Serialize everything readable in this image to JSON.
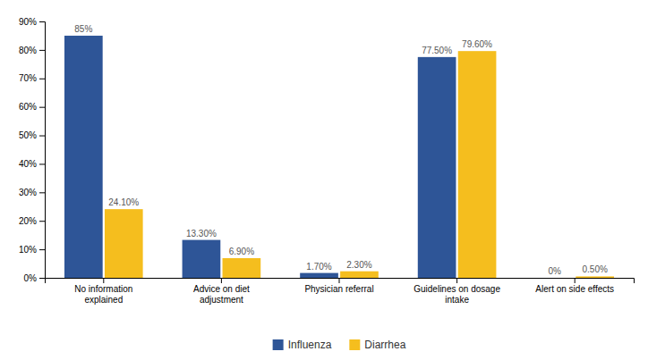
{
  "chart_data": {
    "type": "bar",
    "categories": [
      "No information\nexplained",
      "Advice on diet\nadjustment",
      "Physician referral",
      "Guidelines on dosage\nintake",
      "Alert on side effects"
    ],
    "series": [
      {
        "name": "Influenza",
        "color": "#2E5597",
        "values": [
          85.0,
          13.3,
          1.7,
          77.5,
          0.0
        ],
        "value_labels": [
          "85%",
          "13.30%",
          "1.70%",
          "77.50%",
          "0%"
        ]
      },
      {
        "name": "Diarrhea",
        "color": "#F5BE1E",
        "values": [
          24.1,
          6.9,
          2.3,
          79.6,
          0.5
        ],
        "value_labels": [
          "24.10%",
          "6.90%",
          "2.30%",
          "79.60%",
          "0.50%"
        ]
      }
    ],
    "ylim": [
      0,
      90
    ],
    "yticks": [
      {
        "value": 0,
        "label": "0%"
      },
      {
        "value": 10,
        "label": "10%"
      },
      {
        "value": 20,
        "label": "20%"
      },
      {
        "value": 30,
        "label": "30%"
      },
      {
        "value": 40,
        "label": "40%"
      },
      {
        "value": 50,
        "label": "50%"
      },
      {
        "value": 60,
        "label": "60%"
      },
      {
        "value": 70,
        "label": "70%"
      },
      {
        "value": 80,
        "label": "80%"
      },
      {
        "value": 90,
        "label": "90%"
      }
    ],
    "data_labels": true,
    "grid": false,
    "legend": "bottom"
  }
}
